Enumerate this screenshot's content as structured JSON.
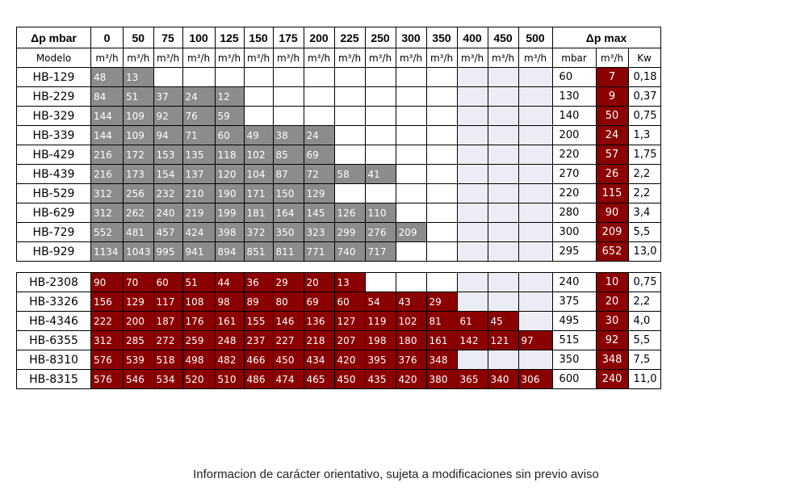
{
  "header": {
    "dp_label": "Δp mbar",
    "pressures": [
      "0",
      "50",
      "75",
      "100",
      "125",
      "150",
      "175",
      "200",
      "225",
      "250",
      "300",
      "350",
      "400",
      "450",
      "500"
    ],
    "dp_max_label": "Δp max"
  },
  "units": {
    "model_label": "Modelo",
    "flow_unit": "m³/h",
    "mbar_label": "mbar",
    "kw_label": "Kw"
  },
  "group1": [
    {
      "model": "HB-129",
      "flows": [
        "48",
        "13"
      ],
      "mbar": "60",
      "q": "7",
      "kw": "0,18"
    },
    {
      "model": "HB-229",
      "flows": [
        "84",
        "51",
        "37",
        "24",
        "12"
      ],
      "mbar": "130",
      "q": "9",
      "kw": "0,37"
    },
    {
      "model": "HB-329",
      "flows": [
        "144",
        "109",
        "92",
        "76",
        "59"
      ],
      "mbar": "140",
      "q": "50",
      "kw": "0,75"
    },
    {
      "model": "HB-339",
      "flows": [
        "144",
        "109",
        "94",
        "71",
        "60",
        "49",
        "38",
        "24"
      ],
      "mbar": "200",
      "q": "24",
      "kw": "1,3"
    },
    {
      "model": "HB-429",
      "flows": [
        "216",
        "172",
        "153",
        "135",
        "118",
        "102",
        "85",
        "69"
      ],
      "mbar": "220",
      "q": "57",
      "kw": "1,75"
    },
    {
      "model": "HB-439",
      "flows": [
        "216",
        "173",
        "154",
        "137",
        "120",
        "104",
        "87",
        "72",
        "58",
        "41"
      ],
      "mbar": "270",
      "q": "26",
      "kw": "2,2"
    },
    {
      "model": "HB-529",
      "flows": [
        "312",
        "256",
        "232",
        "210",
        "190",
        "171",
        "150",
        "129"
      ],
      "mbar": "220",
      "q": "115",
      "kw": "2,2"
    },
    {
      "model": "HB-629",
      "flows": [
        "312",
        "262",
        "240",
        "219",
        "199",
        "181",
        "164",
        "145",
        "126",
        "110"
      ],
      "mbar": "280",
      "q": "90",
      "kw": "3,4"
    },
    {
      "model": "HB-729",
      "flows": [
        "552",
        "481",
        "457",
        "424",
        "398",
        "372",
        "350",
        "323",
        "299",
        "276",
        "209"
      ],
      "mbar": "300",
      "q": "209",
      "kw": "5,5"
    },
    {
      "model": "HB-929",
      "flows": [
        "1134",
        "1043",
        "995",
        "941",
        "894",
        "851",
        "811",
        "771",
        "740",
        "717"
      ],
      "mbar": "295",
      "q": "652",
      "kw": "13,0"
    }
  ],
  "group2": [
    {
      "model": "HB-2308",
      "flows": [
        "90",
        "70",
        "60",
        "51",
        "44",
        "36",
        "29",
        "20",
        "13"
      ],
      "mbar": "240",
      "q": "10",
      "kw": "0,75"
    },
    {
      "model": "HB-3326",
      "flows": [
        "156",
        "129",
        "117",
        "108",
        "98",
        "89",
        "80",
        "69",
        "60",
        "54",
        "43",
        "29"
      ],
      "mbar": "375",
      "q": "20",
      "kw": "2,2"
    },
    {
      "model": "HB-4346",
      "flows": [
        "222",
        "200",
        "187",
        "176",
        "161",
        "155",
        "146",
        "136",
        "127",
        "119",
        "102",
        "81",
        "61",
        "45"
      ],
      "mbar": "495",
      "q": "30",
      "kw": "4,0"
    },
    {
      "model": "HB-6355",
      "flows": [
        "312",
        "285",
        "272",
        "259",
        "248",
        "237",
        "227",
        "218",
        "207",
        "198",
        "180",
        "161",
        "142",
        "121",
        "97"
      ],
      "mbar": "515",
      "q": "92",
      "kw": "5,5"
    },
    {
      "model": "HB-8310",
      "flows": [
        "576",
        "539",
        "518",
        "498",
        "482",
        "466",
        "450",
        "434",
        "420",
        "395",
        "376",
        "348"
      ],
      "mbar": "350",
      "q": "348",
      "kw": "7,5"
    },
    {
      "model": "HB-8315",
      "flows": [
        "576",
        "546",
        "534",
        "520",
        "510",
        "486",
        "474",
        "465",
        "450",
        "435",
        "420",
        "380",
        "365",
        "340",
        "306"
      ],
      "mbar": "600",
      "q": "240",
      "kw": "11,0"
    }
  ],
  "footer": {
    "note": "Informacion de carácter orientativo, sujeta a modificaciones sin previo aviso"
  },
  "colors": {
    "gray_cell": "#8c8c8c",
    "red_cell": "#8b0000",
    "empty_light": "#ececf4"
  }
}
